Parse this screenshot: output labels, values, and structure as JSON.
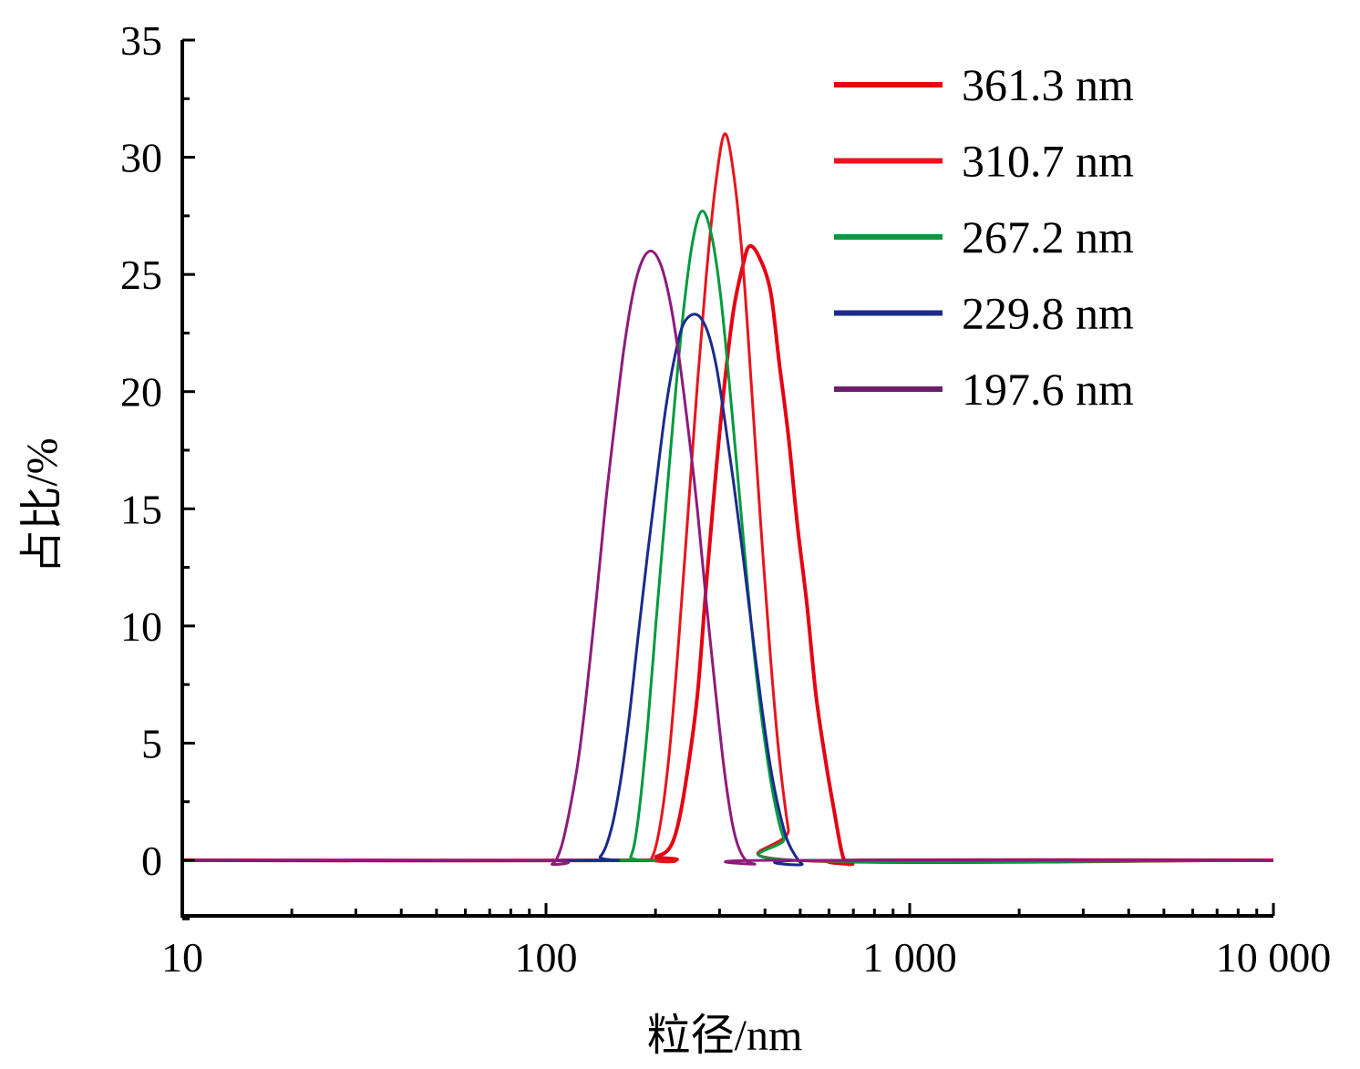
{
  "chart_data": {
    "type": "line",
    "title": "",
    "xlabel": "粒径/nm",
    "ylabel": "占比/%",
    "xscale": "log",
    "xlim": [
      10,
      10000
    ],
    "ylim": [
      -2.4,
      35
    ],
    "x_ticks": [
      10,
      100,
      1000,
      10000
    ],
    "x_tick_labels": [
      "10",
      "100",
      "1 000",
      "10 000"
    ],
    "y_ticks": [
      0,
      5,
      10,
      15,
      20,
      25,
      30,
      35
    ],
    "y_tick_labels": [
      "0",
      "5",
      "10",
      "15",
      "20",
      "25",
      "30",
      "35"
    ],
    "grid": false,
    "legend_position": "top-right",
    "series": [
      {
        "name": "361.3 nm",
        "color": "#e60012",
        "width": 4,
        "points": [
          [
            10,
            0
          ],
          [
            179,
            0
          ],
          [
            201,
            0.16
          ],
          [
            219,
            0.54
          ],
          [
            232,
            1.7
          ],
          [
            246,
            4.0
          ],
          [
            261,
            7.1
          ],
          [
            276,
            11.8
          ],
          [
            293,
            16.5
          ],
          [
            310,
            20.4
          ],
          [
            328,
            23.5
          ],
          [
            348,
            25.4
          ],
          [
            362,
            26.2
          ],
          [
            384,
            25.8
          ],
          [
            414,
            24.3
          ],
          [
            438,
            21.2
          ],
          [
            464,
            18.1
          ],
          [
            492,
            14.2
          ],
          [
            521,
            11.0
          ],
          [
            552,
            7.1
          ],
          [
            585,
            4.4
          ],
          [
            620,
            2.1
          ],
          [
            657,
            0.1
          ],
          [
            696,
            -0.16
          ],
          [
            737,
            0
          ],
          [
            10000,
            0
          ]
        ]
      },
      {
        "name": "310.7 nm",
        "color": "#e8141c",
        "width": 3,
        "points": [
          [
            10,
            0
          ],
          [
            179,
            0
          ],
          [
            195,
            0.08
          ],
          [
            207,
            1.7
          ],
          [
            219,
            4.8
          ],
          [
            232,
            9.5
          ],
          [
            246,
            14.9
          ],
          [
            261,
            20.4
          ],
          [
            276,
            25.0
          ],
          [
            293,
            28.9
          ],
          [
            310,
            31.0
          ],
          [
            328,
            29.3
          ],
          [
            348,
            25.4
          ],
          [
            368,
            20.0
          ],
          [
            390,
            14.2
          ],
          [
            414,
            8.7
          ],
          [
            438,
            4.4
          ],
          [
            464,
            1.3
          ],
          [
            483,
            0
          ],
          [
            10000,
            0
          ]
        ]
      },
      {
        "name": "267.2 nm",
        "color": "#009a3e",
        "width": 3,
        "points": [
          [
            10,
            0
          ],
          [
            160,
            0
          ],
          [
            171,
            0.16
          ],
          [
            179,
            1.7
          ],
          [
            190,
            5.6
          ],
          [
            201,
            10.3
          ],
          [
            213,
            14.9
          ],
          [
            226,
            19.6
          ],
          [
            239,
            23.5
          ],
          [
            253,
            26.4
          ],
          [
            268,
            27.7
          ],
          [
            284,
            26.8
          ],
          [
            301,
            24.3
          ],
          [
            319,
            20.4
          ],
          [
            338,
            16.1
          ],
          [
            358,
            11.8
          ],
          [
            379,
            7.9
          ],
          [
            402,
            4.8
          ],
          [
            425,
            2.5
          ],
          [
            451,
            0.93
          ],
          [
            492,
            0
          ],
          [
            10000,
            0
          ]
        ]
      },
      {
        "name": "229.8 nm",
        "color": "#1a2a8c",
        "width": 3,
        "points": [
          [
            10,
            0
          ],
          [
            127,
            0
          ],
          [
            141,
            0.16
          ],
          [
            151,
            1.3
          ],
          [
            160,
            3.3
          ],
          [
            169,
            6.0
          ],
          [
            179,
            9.5
          ],
          [
            190,
            13.0
          ],
          [
            201,
            16.1
          ],
          [
            213,
            19.2
          ],
          [
            226,
            21.5
          ],
          [
            239,
            22.9
          ],
          [
            258,
            23.3
          ],
          [
            276,
            22.7
          ],
          [
            293,
            21.2
          ],
          [
            310,
            18.8
          ],
          [
            328,
            16.1
          ],
          [
            348,
            13.0
          ],
          [
            368,
            9.9
          ],
          [
            390,
            6.8
          ],
          [
            414,
            4.0
          ],
          [
            438,
            2.1
          ],
          [
            464,
            0.74
          ],
          [
            506,
            -0.16
          ],
          [
            535,
            0
          ],
          [
            10000,
            0
          ]
        ]
      },
      {
        "name": "197.6 nm",
        "color": "#8e1a7c",
        "legend_color": "#6b1f6b",
        "width": 3,
        "points": [
          [
            10,
            0
          ],
          [
            95,
            0
          ],
          [
            104,
            -0.16
          ],
          [
            110,
            0.54
          ],
          [
            116,
            2.1
          ],
          [
            123,
            4.4
          ],
          [
            130,
            7.5
          ],
          [
            138,
            11.4
          ],
          [
            146,
            15.3
          ],
          [
            155,
            18.8
          ],
          [
            164,
            21.9
          ],
          [
            174,
            24.3
          ],
          [
            184,
            25.6
          ],
          [
            195,
            26.0
          ],
          [
            207,
            25.4
          ],
          [
            219,
            23.9
          ],
          [
            232,
            21.5
          ],
          [
            246,
            18.4
          ],
          [
            261,
            14.9
          ],
          [
            276,
            11.0
          ],
          [
            293,
            7.1
          ],
          [
            310,
            3.7
          ],
          [
            328,
            1.3
          ],
          [
            348,
            0.16
          ],
          [
            375,
            -0.16
          ],
          [
            402,
            0
          ],
          [
            10000,
            0
          ]
        ]
      }
    ]
  }
}
